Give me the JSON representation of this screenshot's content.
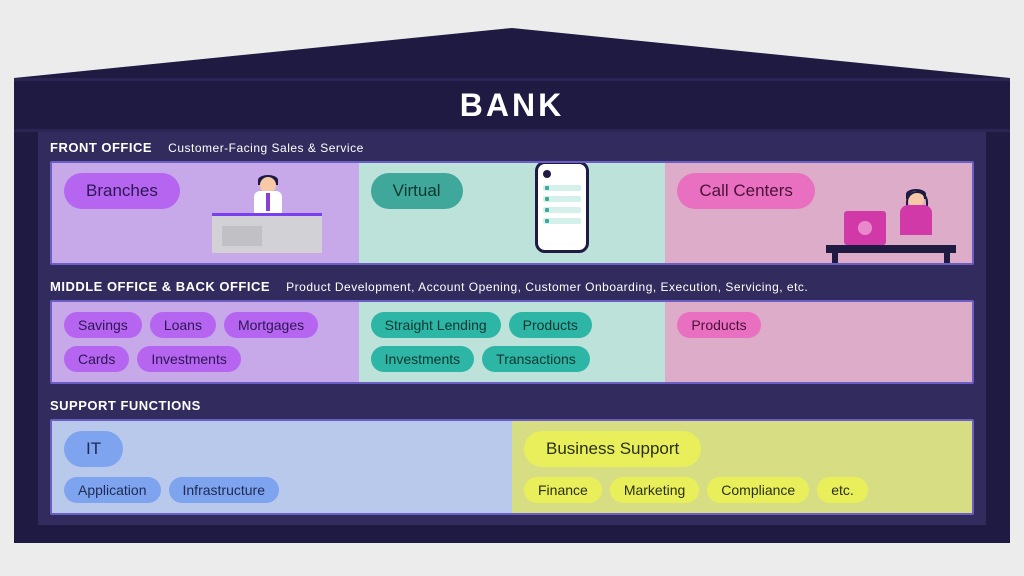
{
  "title": "BANK",
  "colors": {
    "dark": "#1e1a42",
    "building_inner": "#322b5e",
    "border": "#6b5fc4",
    "purple_bg": "#c7a8e8",
    "purple_pill": "#b665f0",
    "purple_pill_text": "#2d1654",
    "teal_bg": "#bde2da",
    "teal_pill": "#3fa89a",
    "teal_pill_text": "#0d3832",
    "pink_bg": "#dcacc8",
    "pink_pill": "#e96fc1",
    "pink_pill_text": "#4a1238",
    "teal_pill2": "#2db5a5",
    "teal_pill2_text": "#0d3832",
    "blue_bg": "#b9c9ec",
    "blue_pill": "#7ea3ef",
    "blue_pill_text": "#1e2a52",
    "yellow_bg": "#d7dd83",
    "yellow_pill": "#e9ef5a",
    "yellow_pill_text": "#2b3014"
  },
  "sections": {
    "front": {
      "title": "FRONT OFFICE",
      "subtitle": "Customer-Facing Sales & Service",
      "cols": [
        {
          "bg_key": "purple_bg",
          "main_pill": "Branches",
          "pill_key": "purple"
        },
        {
          "bg_key": "teal_bg",
          "main_pill": "Virtual",
          "pill_key": "teal"
        },
        {
          "bg_key": "pink_bg",
          "main_pill": "Call Centers",
          "pill_key": "pink"
        }
      ]
    },
    "middle": {
      "title": "MIDDLE OFFICE & BACK OFFICE",
      "subtitle": "Product Development, Account Opening, Customer Onboarding, Execution, Servicing, etc.",
      "cols": [
        {
          "bg_key": "purple_bg",
          "pill_key": "purple",
          "pills": [
            "Savings",
            "Loans",
            "Mortgages",
            "Cards",
            "Investments"
          ]
        },
        {
          "bg_key": "teal_bg",
          "pill_key": "teal2",
          "pills": [
            "Straight Lending",
            "Products",
            "Investments",
            "Transactions"
          ]
        },
        {
          "bg_key": "pink_bg",
          "pill_key": "pink",
          "pills": [
            "Products"
          ]
        }
      ]
    },
    "support": {
      "title": "SUPPORT FUNCTIONS",
      "subtitle": "",
      "cols": [
        {
          "bg_key": "blue_bg",
          "pill_key": "blue",
          "main_pill": "IT",
          "pills": [
            "Application",
            "Infrastructure"
          ]
        },
        {
          "bg_key": "yellow_bg",
          "pill_key": "yellow",
          "main_pill": "Business Support",
          "pills": [
            "Finance",
            "Marketing",
            "Compliance",
            "etc."
          ]
        }
      ]
    }
  }
}
